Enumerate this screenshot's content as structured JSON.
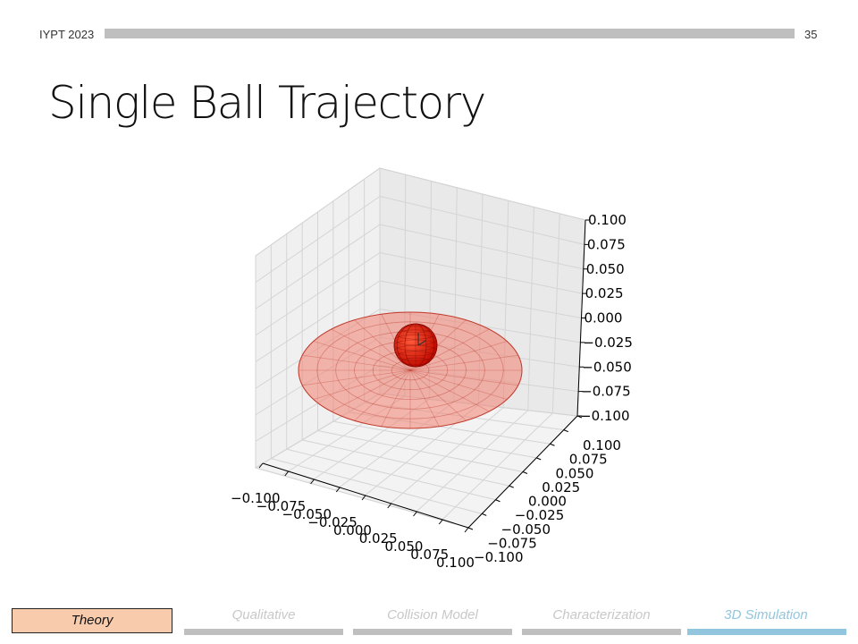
{
  "header": {
    "left": "IYPT 2023",
    "page": "35"
  },
  "title": "Single Ball Trajectory",
  "nav": {
    "theory": "Theory",
    "items": [
      {
        "label": "Qualitative",
        "color": "#bfbfbf",
        "text_color": "#c8c8c8"
      },
      {
        "label": "Collision Model",
        "color": "#bfbfbf",
        "text_color": "#c8c8c8"
      },
      {
        "label": "Characterization",
        "color": "#bfbfbf",
        "text_color": "#c8c8c8"
      },
      {
        "label": "3D Simulation",
        "color": "#92c5de",
        "text_color": "#92c5de"
      }
    ]
  },
  "chart_data": {
    "type": "3d-surface",
    "xlim": [
      -0.1,
      0.1
    ],
    "ylim": [
      -0.1,
      0.1
    ],
    "zlim": [
      -0.1,
      0.1
    ],
    "x_ticks": [
      "−0.100",
      "−0.075",
      "−0.050",
      "−0.025",
      "0.000",
      "0.025",
      "0.050",
      "0.075",
      "0.100"
    ],
    "y_ticks": [
      "−0.100",
      "−0.075",
      "−0.050",
      "−0.025",
      "0.000",
      "0.025",
      "0.050",
      "0.075",
      "0.100"
    ],
    "z_ticks": [
      "−0.100",
      "−0.075",
      "−0.050",
      "−0.025",
      "0.000",
      "0.025",
      "0.050",
      "0.075",
      "0.100"
    ],
    "grid": true,
    "disk": {
      "color": "#f08070"
    },
    "ball": {
      "color": "#ee1100"
    }
  }
}
